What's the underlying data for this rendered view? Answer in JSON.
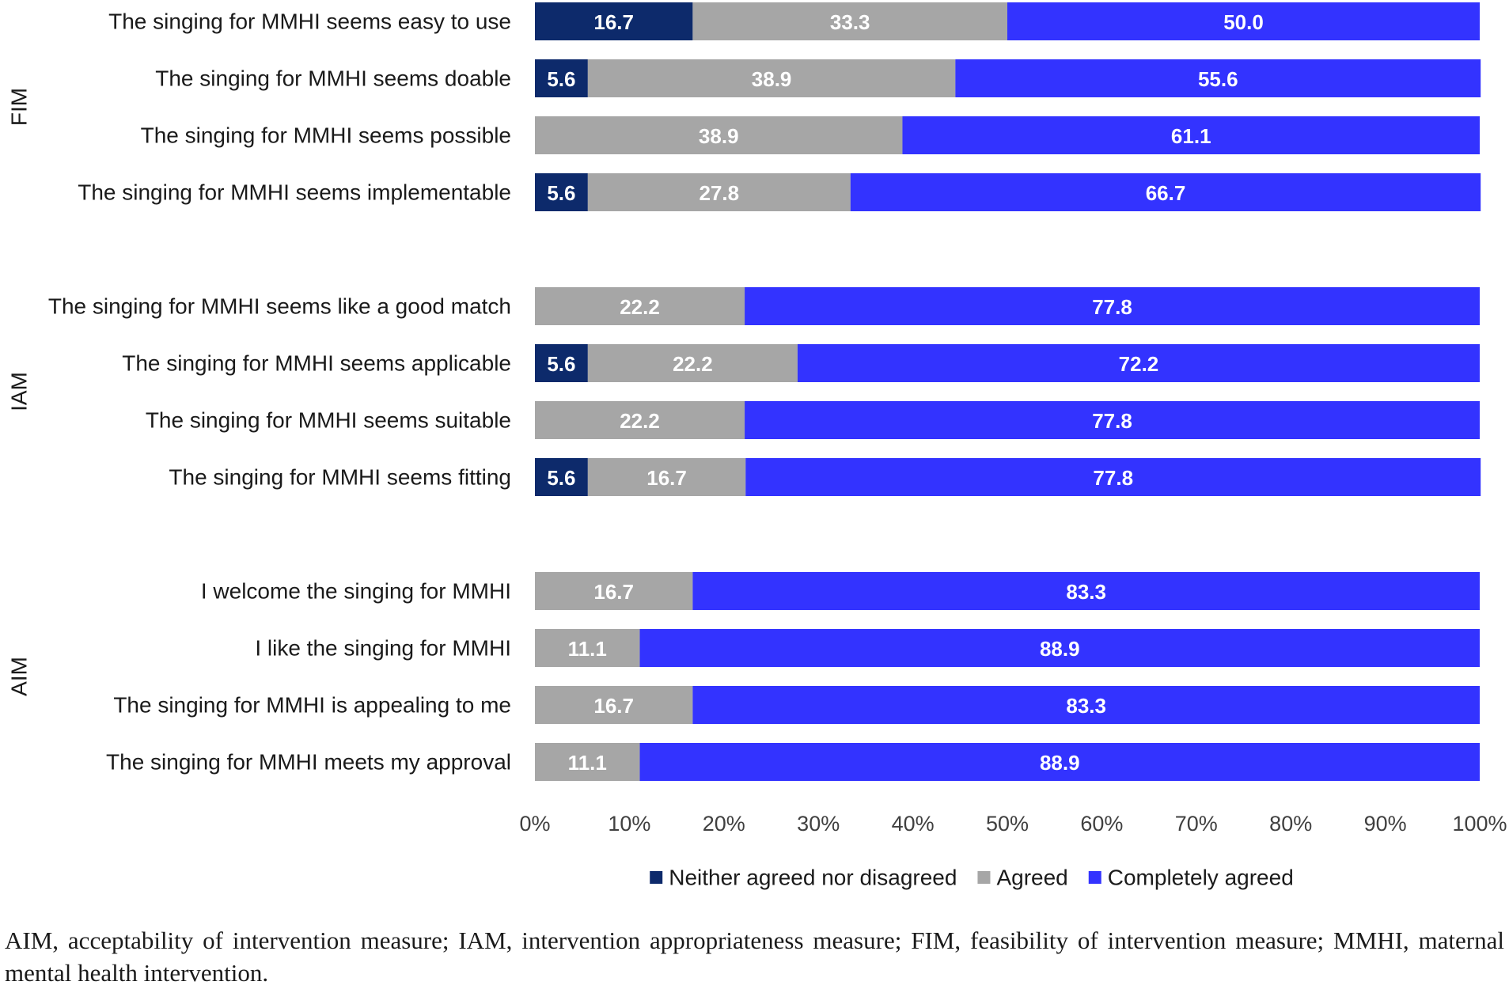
{
  "chart_data": {
    "type": "bar",
    "orientation": "horizontal",
    "stacked": true,
    "percent_stacked": true,
    "groups": [
      {
        "label": "FIM",
        "items": [
          {
            "label": "The singing for MMHI seems easy to use",
            "values": [
              16.7,
              33.3,
              50.0
            ]
          },
          {
            "label": "The singing for MMHI seems doable",
            "values": [
              5.6,
              38.9,
              55.6
            ]
          },
          {
            "label": "The singing for MMHI seems possible",
            "values": [
              0,
              38.9,
              61.1
            ]
          },
          {
            "label": "The singing for MMHI seems implementable",
            "values": [
              5.6,
              27.8,
              66.7
            ]
          }
        ]
      },
      {
        "label": "IAM",
        "items": [
          {
            "label": "The singing for MMHI seems like a good match",
            "values": [
              0,
              22.2,
              77.8
            ]
          },
          {
            "label": "The singing for MMHI seems applicable",
            "values": [
              5.6,
              22.2,
              72.2
            ]
          },
          {
            "label": "The singing for MMHI seems suitable",
            "values": [
              0,
              22.2,
              77.8
            ]
          },
          {
            "label": "The singing for MMHI seems fitting",
            "values": [
              5.6,
              16.7,
              77.8
            ]
          }
        ]
      },
      {
        "label": "AIM",
        "items": [
          {
            "label": "I welcome the singing for MMHI",
            "values": [
              0,
              16.7,
              83.3
            ]
          },
          {
            "label": "I like the singing for MMHI",
            "values": [
              0,
              11.1,
              88.9
            ]
          },
          {
            "label": "The singing for MMHI is appealing to me",
            "values": [
              0,
              16.7,
              83.3
            ]
          },
          {
            "label": "The singing for MMHI meets my approval",
            "values": [
              0,
              11.1,
              88.9
            ]
          }
        ]
      }
    ],
    "series": [
      {
        "name": "Neither agreed nor disagreed",
        "color": "#0d2a6b"
      },
      {
        "name": "Agreed",
        "color": "#a6a6a6"
      },
      {
        "name": "Completely agreed",
        "color": "#3333ff"
      }
    ],
    "xlim": [
      0,
      100
    ],
    "x_ticks": [
      "0%",
      "10%",
      "20%",
      "30%",
      "40%",
      "50%",
      "60%",
      "70%",
      "80%",
      "90%",
      "100%"
    ],
    "legend_position": "bottom",
    "grid": false
  },
  "caption": "AIM, acceptability of intervention measure; IAM, intervention appropriateness measure; FIM, feasibility of intervention measure; MMHI, maternal mental health intervention."
}
